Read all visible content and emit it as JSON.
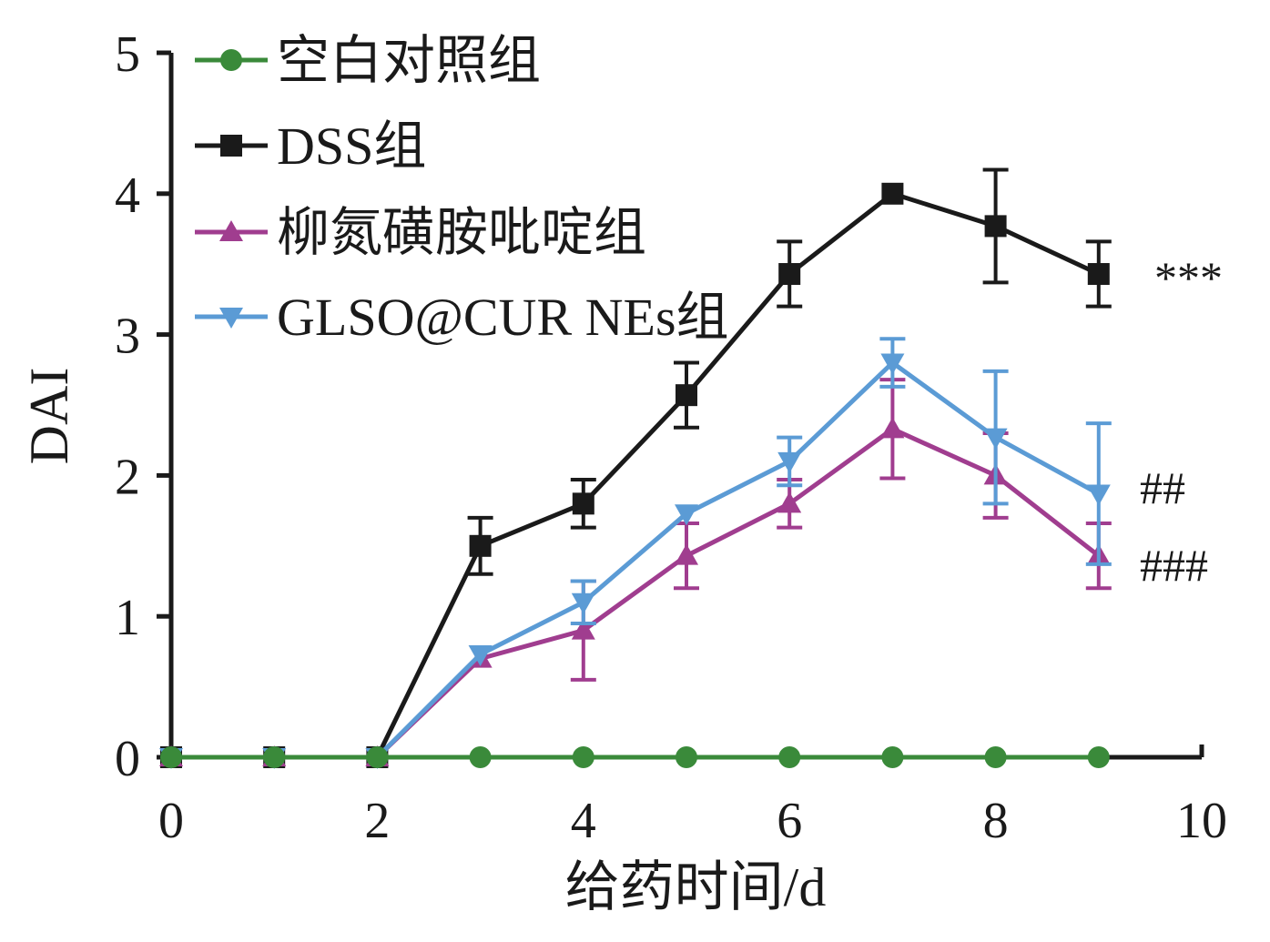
{
  "chart_data": {
    "type": "line",
    "title": "",
    "xlabel": "给药时间/d",
    "ylabel": "DAI",
    "xlim": [
      0,
      10
    ],
    "ylim": [
      0,
      5
    ],
    "xticks": [
      0,
      2,
      4,
      6,
      8,
      10
    ],
    "yticks": [
      0,
      1,
      2,
      3,
      4,
      5
    ],
    "x": [
      0,
      1,
      2,
      3,
      4,
      5,
      6,
      7,
      8,
      9
    ],
    "series": [
      {
        "name": "空白对照组",
        "marker": "circle",
        "color": "#3a8a3a",
        "values": [
          0,
          0,
          0,
          0,
          0,
          0,
          0,
          0,
          0,
          0
        ],
        "errors": [
          0,
          0,
          0,
          0,
          0,
          0,
          0,
          0,
          0,
          0
        ],
        "annotation": ""
      },
      {
        "name": "DSS组",
        "marker": "square",
        "color": "#1a1a1a",
        "values": [
          0,
          0,
          0,
          1.5,
          1.8,
          2.57,
          3.43,
          4.0,
          3.77,
          3.43
        ],
        "errors": [
          0,
          0,
          0,
          0.2,
          0.17,
          0.23,
          0.23,
          0,
          0.4,
          0.23
        ],
        "annotation": "***"
      },
      {
        "name": "柳氮磺胺吡啶组",
        "marker": "triangle-up",
        "color": "#a03d8f",
        "values": [
          0,
          0,
          0,
          0.7,
          0.9,
          1.43,
          1.8,
          2.33,
          2.0,
          1.43
        ],
        "errors": [
          0,
          0,
          0,
          0,
          0.35,
          0.23,
          0.17,
          0.35,
          0.3,
          0.23
        ],
        "annotation": "###"
      },
      {
        "name": "GLSO@CUR NEs组",
        "marker": "triangle-down",
        "color": "#5b9bd5",
        "values": [
          0,
          0,
          0,
          0.73,
          1.1,
          1.73,
          2.1,
          2.8,
          2.27,
          1.87
        ],
        "errors": [
          0,
          0,
          0,
          0,
          0.15,
          0,
          0.17,
          0.17,
          0.47,
          0.5
        ],
        "annotation": "##"
      }
    ],
    "legend": {
      "position": "top-left"
    }
  }
}
